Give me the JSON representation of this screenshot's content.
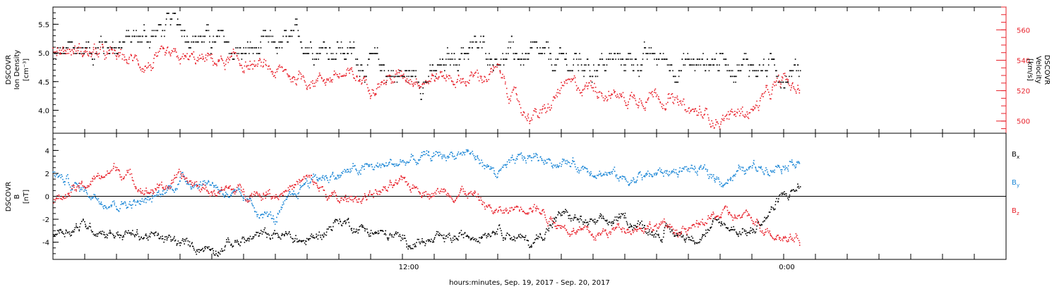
{
  "colors": {
    "black": "#000000",
    "red": "#e8202a",
    "blue": "#1a86d6"
  },
  "xaxis": {
    "label": "hours:minutes, Sep. 19, 2017 - Sep. 20, 2017",
    "range_hours": [
      0,
      30
    ],
    "ticks": [
      1,
      2,
      3,
      4,
      5,
      6,
      7,
      8,
      9,
      10,
      11,
      12,
      13,
      14,
      15,
      16,
      17,
      18,
      19,
      20,
      21,
      22,
      23,
      24,
      25,
      26,
      27,
      28,
      29
    ],
    "tick_labels": [
      {
        "hour": 11.2,
        "text": "12:00"
      },
      {
        "hour": 23.1,
        "text": "0:00"
      }
    ]
  },
  "chart_data": [
    {
      "type": "scatter",
      "panel": "plasma",
      "ylabel_left": [
        "DSCOVR",
        "Ion Density",
        "[cm⁻³]"
      ],
      "ylabel_right": [
        "DSCOVR",
        "Velocity",
        "[km/s]"
      ],
      "ylim_left": [
        3.6,
        5.8
      ],
      "yticks_left": [
        4.0,
        4.5,
        5.0,
        5.5
      ],
      "ytick_labels_left": [
        "4.0",
        "4.5",
        "5.0",
        "5.5"
      ],
      "ylim_right": [
        492,
        575
      ],
      "yticks_right": [
        500,
        520,
        540,
        560
      ],
      "ytick_labels_right": [
        "500",
        "520",
        "540",
        "560"
      ],
      "series": [
        {
          "color": "#000000",
          "x": [
            0,
            1,
            2,
            3,
            3.3,
            4,
            5,
            6,
            7,
            8,
            9,
            10,
            11,
            12,
            13,
            14,
            15,
            16,
            17,
            18,
            19,
            20,
            21,
            22,
            23,
            23.5
          ],
          "y": [
            4.9,
            5.1,
            5.2,
            5.3,
            5.4,
            5.5,
            5.2,
            5.0,
            5.1,
            5.2,
            5.1,
            4.8,
            4.6,
            4.6,
            5.1,
            5.0,
            4.9,
            4.8,
            4.8,
            4.9,
            4.9,
            4.8,
            4.9,
            4.8,
            4.7,
            4.8
          ]
        },
        {
          "color": "#e8202a",
          "x": [
            0,
            1,
            2,
            3,
            4,
            5,
            6,
            7,
            8,
            9,
            10,
            11,
            12,
            13,
            14,
            14.8,
            15.5,
            16,
            17,
            18,
            19,
            20,
            21,
            22,
            23,
            23.5
          ],
          "y": [
            548,
            546,
            542,
            538,
            540,
            540,
            538,
            532,
            528,
            530,
            526,
            530,
            530,
            528,
            532,
            506,
            504,
            522,
            524,
            515,
            520,
            506,
            502,
            508,
            526,
            520
          ]
        }
      ]
    },
    {
      "type": "scatter",
      "panel": "magnetic",
      "ylabel_left": [
        "DSCOVR",
        "B",
        "[nT]"
      ],
      "ylim": [
        -5.5,
        5.5
      ],
      "yticks": [
        -4,
        -2,
        0,
        2,
        4
      ],
      "ytick_labels": [
        "-4",
        "-2",
        "0",
        "2",
        "4"
      ],
      "zero_line": true,
      "legend": [
        {
          "label": "B",
          "sub": "x",
          "color": "#000000"
        },
        {
          "label": "B",
          "sub": "y",
          "color": "#1a86d6"
        },
        {
          "label": "B",
          "sub": "z",
          "color": "#e8202a"
        }
      ],
      "series": [
        {
          "name": "Bx",
          "color": "#000000",
          "x": [
            0,
            1,
            2,
            3,
            4,
            5,
            6,
            7,
            8,
            9,
            10,
            11,
            12,
            13,
            14,
            15,
            16,
            17,
            18,
            19,
            20,
            21,
            22,
            23,
            23.5
          ],
          "y": [
            -3.0,
            -2.5,
            -3.2,
            -3.4,
            -4.2,
            -4.4,
            -3.8,
            -3.2,
            -4.0,
            -2.0,
            -3.0,
            -3.8,
            -4.0,
            -3.5,
            -2.5,
            -4.2,
            -1.5,
            -2.5,
            -2.0,
            -3.0,
            -3.5,
            -2.5,
            -3.0,
            0.0,
            1.0
          ]
        },
        {
          "name": "By",
          "color": "#1a86d6",
          "x": [
            0,
            1,
            2,
            3,
            4,
            5,
            6,
            7,
            8,
            9,
            10,
            11,
            12,
            13,
            14,
            15,
            16,
            17,
            18,
            19,
            20,
            21,
            22,
            23,
            23.5
          ],
          "y": [
            2.0,
            0.5,
            -0.5,
            -0.5,
            1.5,
            1.2,
            -0.5,
            -2.0,
            1.5,
            2.0,
            2.5,
            3.0,
            3.5,
            4.0,
            2.0,
            3.5,
            3.0,
            2.5,
            1.5,
            2.0,
            2.5,
            1.5,
            2.5,
            3.0,
            3.5
          ]
        },
        {
          "name": "Bz",
          "color": "#e8202a",
          "x": [
            0,
            1,
            2,
            3,
            4,
            5,
            6,
            7,
            8,
            9,
            10,
            11,
            12,
            13,
            14,
            15,
            16,
            17,
            18,
            19,
            20,
            21,
            22,
            23,
            23.5
          ],
          "y": [
            -0.5,
            1.0,
            2.5,
            0.5,
            1.5,
            0.5,
            0.5,
            0.3,
            1.5,
            -0.5,
            0.3,
            1.0,
            0.5,
            0.5,
            -1.5,
            -0.5,
            -2.5,
            -3.5,
            -2.5,
            -2.5,
            -3.0,
            -1.5,
            -2.0,
            -3.5,
            -3.5
          ]
        }
      ]
    }
  ]
}
